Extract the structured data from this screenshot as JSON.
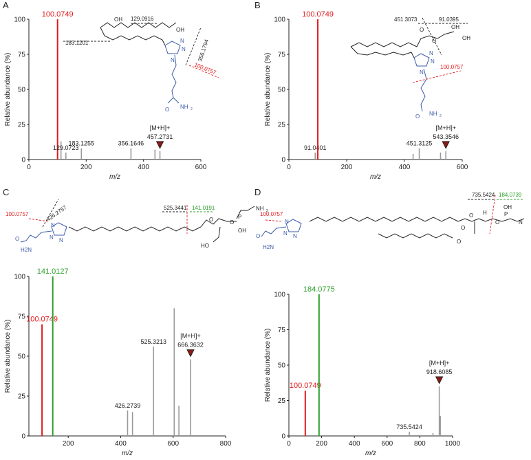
{
  "colors": {
    "red": "#e31a1c",
    "green": "#2ca02c",
    "gray": "#9a9a9a",
    "blue": "#3b5ba9",
    "dark": "#222222",
    "marker": "#8b1a1a"
  },
  "chart_data": [
    {
      "panel": "A",
      "type": "bar",
      "xlabel": "m/z",
      "ylabel": "Relative abundance (%)",
      "xlim": [
        0,
        600
      ],
      "ylim": [
        0,
        100
      ],
      "xticks": [
        0,
        200,
        400,
        600
      ],
      "yticks": [
        0,
        25,
        50,
        75,
        100
      ],
      "peaks": [
        {
          "x": 100.0749,
          "y": 100,
          "label": "100.0749",
          "color": "red"
        },
        {
          "x": 112,
          "y": 13
        },
        {
          "x": 129.0723,
          "y": 5,
          "label": "129.0723"
        },
        {
          "x": 183.1255,
          "y": 8,
          "label": "183.1255"
        },
        {
          "x": 356.1646,
          "y": 8,
          "label": "356.1646"
        },
        {
          "x": 440,
          "y": 7
        },
        {
          "x": 457.2731,
          "y": 6,
          "label": "457.2731"
        }
      ],
      "precursor": {
        "label": "[M+H]+",
        "x": 457.2731
      },
      "fragments": [
        "129.0916",
        "183.1201",
        "356.1794",
        "100.0757"
      ]
    },
    {
      "panel": "B",
      "type": "bar",
      "xlabel": "m/z",
      "ylabel": "Relative abundance (%)",
      "xlim": [
        0,
        600
      ],
      "ylim": [
        0,
        100
      ],
      "xticks": [
        0,
        200,
        400,
        600
      ],
      "yticks": [
        0,
        25,
        50,
        75,
        100
      ],
      "peaks": [
        {
          "x": 91.0401,
          "y": 5,
          "label": "91.0401"
        },
        {
          "x": 100.0749,
          "y": 100,
          "label": "100.0749",
          "color": "red"
        },
        {
          "x": 430,
          "y": 4
        },
        {
          "x": 451.3125,
          "y": 8,
          "label": "451.3125"
        },
        {
          "x": 525,
          "y": 5
        },
        {
          "x": 543.3546,
          "y": 6,
          "label": "543.3546"
        }
      ],
      "precursor": {
        "label": "[M+H]+",
        "x": 543.3546
      },
      "fragments": [
        "451.3073",
        "91.0395",
        "100.0757"
      ]
    },
    {
      "panel": "C",
      "type": "bar",
      "xlabel": "m/z",
      "ylabel": "Relative abundance (%)",
      "xlim": [
        50,
        800
      ],
      "ylim": [
        0,
        100
      ],
      "xticks": [
        200,
        400,
        600,
        800
      ],
      "yticks": [
        0,
        25,
        50,
        75,
        100
      ],
      "peaks": [
        {
          "x": 100.0749,
          "y": 70,
          "label": "100.0749",
          "color": "red"
        },
        {
          "x": 141.0127,
          "y": 100,
          "label": "141.0127",
          "color": "green"
        },
        {
          "x": 426.2739,
          "y": 16,
          "label": "426.2739"
        },
        {
          "x": 445,
          "y": 15
        },
        {
          "x": 525.3213,
          "y": 56,
          "label": "525.3213"
        },
        {
          "x": 604,
          "y": 80
        },
        {
          "x": 622,
          "y": 19
        },
        {
          "x": 666.3632,
          "y": 48,
          "label": "666.3632"
        }
      ],
      "precursor": {
        "label": "[M+H]+",
        "x": 666.3632
      },
      "fragments": [
        "100.0757",
        "426.2757",
        "525.3441",
        "141.0191"
      ]
    },
    {
      "panel": "D",
      "type": "bar",
      "xlabel": "m/z",
      "ylabel": "Relative abundance (%)",
      "xlim": [
        0,
        1000
      ],
      "ylim": [
        0,
        100
      ],
      "xticks": [
        0,
        200,
        400,
        600,
        800,
        1000
      ],
      "yticks": [
        0,
        25,
        50,
        75,
        100
      ],
      "peaks": [
        {
          "x": 100.0749,
          "y": 32,
          "label": "100.0749",
          "color": "red"
        },
        {
          "x": 184.0775,
          "y": 100,
          "label": "184.0775",
          "color": "green"
        },
        {
          "x": 735.5424,
          "y": 3,
          "label": "735.5424"
        },
        {
          "x": 880,
          "y": 2
        },
        {
          "x": 918.6085,
          "y": 35,
          "label": "918.6085"
        },
        {
          "x": 925,
          "y": 14
        }
      ],
      "precursor": {
        "label": "[M+H]+",
        "x": 918.6085
      },
      "fragments": [
        "100.0757",
        "735.5424",
        "184.0739"
      ]
    }
  ],
  "panel_letters": [
    "A",
    "B",
    "C",
    "D"
  ],
  "axis": {
    "xlabel": "m/z",
    "ylabel": "Relative abundance (%)"
  },
  "structures": {
    "A": {
      "oh": "OH",
      "oh2": "OH",
      "n1": "N",
      "n2": "N",
      "n3": "N",
      "nh2": "NH",
      "o": "O"
    },
    "B": {
      "oh": "OH",
      "oh2": "OH",
      "o1": "O",
      "o2": "O",
      "n1": "N",
      "n2": "N",
      "n3": "N",
      "nh2": "NH",
      "o3": "O"
    },
    "C": {
      "o1": "O",
      "o2": "O",
      "p": "P",
      "oh": "OH",
      "ho": "HO",
      "nh2": "NH",
      "n1": "N",
      "n2": "N",
      "n3": "N",
      "o3": "O",
      "h2n": "H2N"
    },
    "D": {
      "o1": "O",
      "o2": "O",
      "o3": "O",
      "o4": "O",
      "p": "P",
      "oh": "OH",
      "h": "H",
      "n": "N",
      "n1": "N",
      "n2": "N",
      "n3": "N",
      "o5": "O",
      "h2n": "H2N"
    }
  }
}
